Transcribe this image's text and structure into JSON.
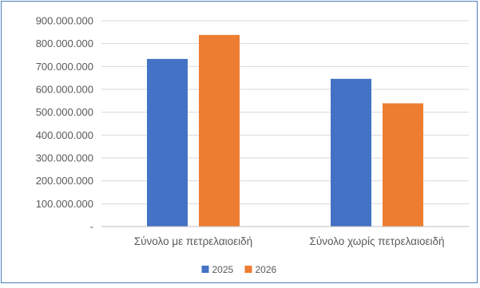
{
  "chart_data": {
    "type": "bar",
    "categories": [
      "Σύνολο με πετρελαιοειδή",
      "Σύνολο χωρίς πετρελαιοειδή"
    ],
    "series": [
      {
        "name": "2025",
        "color": "#4472c4",
        "values": [
          733000000,
          646000000
        ]
      },
      {
        "name": "2026",
        "color": "#ed7d31",
        "values": [
          838000000,
          539000000
        ]
      }
    ],
    "ylim": [
      0,
      900000000
    ],
    "y_ticks": [
      {
        "value": 900000000,
        "label": "900.000.000"
      },
      {
        "value": 800000000,
        "label": "800.000.000"
      },
      {
        "value": 700000000,
        "label": "700.000.000"
      },
      {
        "value": 600000000,
        "label": "600.000.000"
      },
      {
        "value": 500000000,
        "label": "500.000.000"
      },
      {
        "value": 400000000,
        "label": "400.000.000"
      },
      {
        "value": 300000000,
        "label": "300.000.000"
      },
      {
        "value": 200000000,
        "label": "200.000.000"
      },
      {
        "value": 100000000,
        "label": "100.000.000"
      },
      {
        "value": 0,
        "label": "-"
      }
    ],
    "grid": true,
    "legend_position": "bottom",
    "gridline_color": "#d9d9d9",
    "axis_color": "#bfbfbf"
  }
}
